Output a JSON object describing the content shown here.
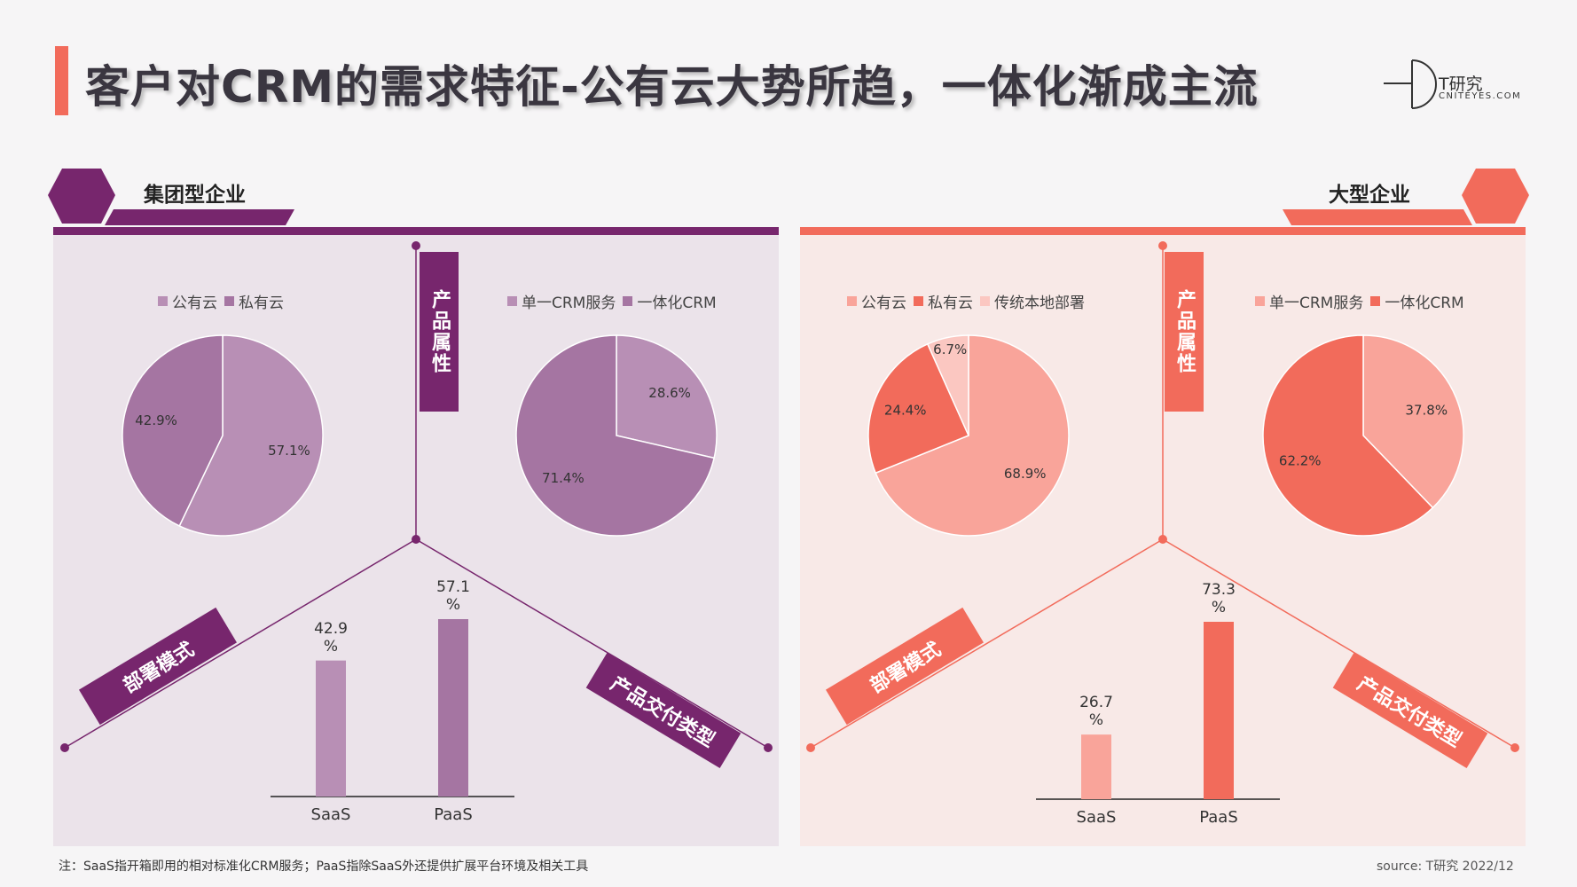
{
  "header": {
    "title": "客户对CRM的需求特征-公有云大势所趋，一体化渐成主流",
    "brand_name": "T研究",
    "brand_domain": "CNITEYES.COM"
  },
  "colors": {
    "purple_dark": "#77266d",
    "purple_mid": "#a575a2",
    "purple_light": "#b88fb5",
    "coral_dark": "#f26b5b",
    "coral_light": "#f9a49a",
    "coral_pale": "#fbc7c1"
  },
  "axis_labels": {
    "attr": "产品属性",
    "deploy": "部署模式",
    "delivery": "产品交付类型"
  },
  "footer": {
    "note": "注：SaaS指开箱即用的相对标准化CRM服务；PaaS指除SaaS外还提供扩展平台环境及相关工具",
    "source": "source:   T研究 2022/12"
  },
  "chart_data": [
    {
      "segment": "集团型企业",
      "type": "pie",
      "id": "left-deploy",
      "series": [
        {
          "name": "公有云",
          "value": 57.1,
          "label": "57.1%",
          "color": "#b88fb5"
        },
        {
          "name": "私有云",
          "value": 42.9,
          "label": "42.9%",
          "color": "#a575a2"
        }
      ]
    },
    {
      "segment": "集团型企业",
      "type": "pie",
      "id": "left-attr",
      "series": [
        {
          "name": "单一CRM服务",
          "value": 28.6,
          "label": "28.6%",
          "color": "#b88fb5"
        },
        {
          "name": "一体化CRM",
          "value": 71.4,
          "label": "71.4%",
          "color": "#a575a2"
        }
      ]
    },
    {
      "segment": "集团型企业",
      "type": "bar",
      "id": "left-delivery",
      "categories": [
        "SaaS",
        "PaaS"
      ],
      "values": [
        42.9,
        57.1
      ],
      "labels": [
        "42.9\n%",
        "57.1\n%"
      ],
      "colors": [
        "#b88fb5",
        "#a575a2"
      ]
    },
    {
      "segment": "大型企业",
      "type": "pie",
      "id": "right-deploy",
      "series": [
        {
          "name": "公有云",
          "value": 68.9,
          "label": "68.9%",
          "color": "#f9a49a"
        },
        {
          "name": "私有云",
          "value": 24.4,
          "label": "24.4%",
          "color": "#f26b5b"
        },
        {
          "name": "传统本地部署",
          "value": 6.7,
          "label": "6.7%",
          "color": "#fbc7c1"
        }
      ]
    },
    {
      "segment": "大型企业",
      "type": "pie",
      "id": "right-attr",
      "series": [
        {
          "name": "单一CRM服务",
          "value": 37.8,
          "label": "37.8%",
          "color": "#f9a49a"
        },
        {
          "name": "一体化CRM",
          "value": 62.2,
          "label": "62.2%",
          "color": "#f26b5b"
        }
      ]
    },
    {
      "segment": "大型企业",
      "type": "bar",
      "id": "right-delivery",
      "categories": [
        "SaaS",
        "PaaS"
      ],
      "values": [
        26.7,
        73.3
      ],
      "labels": [
        "26.7\n%",
        "73.3\n%"
      ],
      "colors": [
        "#f9a49a",
        "#f26b5b"
      ]
    }
  ]
}
